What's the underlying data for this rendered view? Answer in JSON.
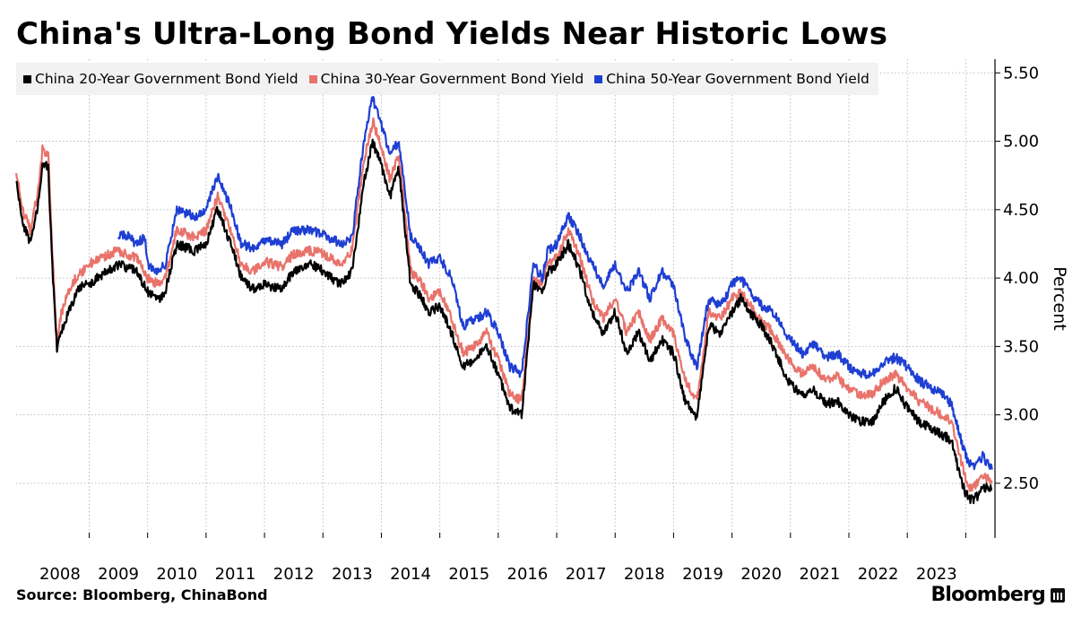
{
  "chart_data": {
    "type": "line",
    "title": "China's Ultra-Long Bond Yields Near Historic Lows",
    "ylabel": "Percent",
    "xlabel": "",
    "ylim": [
      2.1,
      5.6
    ],
    "xlim": [
      2007.75,
      2024.5
    ],
    "y_ticks": [
      "2.50",
      "3.00",
      "3.50",
      "4.00",
      "4.50",
      "5.00",
      "5.50"
    ],
    "x_ticks": [
      "2008",
      "2009",
      "2010",
      "2011",
      "2012",
      "2013",
      "2014",
      "2015",
      "2016",
      "2017",
      "2018",
      "2019",
      "2020",
      "2021",
      "2022",
      "2023"
    ],
    "grid": true,
    "legend_position": "top-left",
    "series": [
      {
        "name": "China 20-Year Government Bond Yield",
        "color": "#000000",
        "x": [
          2007.75,
          2007.85,
          2008.0,
          2008.15,
          2008.2,
          2008.3,
          2008.38,
          2008.45,
          2008.5,
          2008.6,
          2008.7,
          2008.8,
          2008.9,
          2009.0,
          2009.2,
          2009.5,
          2009.8,
          2010.0,
          2010.2,
          2010.3,
          2010.5,
          2010.8,
          2011.0,
          2011.2,
          2011.45,
          2011.6,
          2011.8,
          2012.0,
          2012.3,
          2012.5,
          2012.8,
          2013.0,
          2013.3,
          2013.5,
          2013.7,
          2013.85,
          2014.0,
          2014.15,
          2014.3,
          2014.5,
          2014.7,
          2014.8,
          2015.0,
          2015.2,
          2015.4,
          2015.6,
          2015.8,
          2016.0,
          2016.2,
          2016.4,
          2016.6,
          2016.75,
          2016.85,
          2017.0,
          2017.2,
          2017.4,
          2017.6,
          2017.8,
          2018.0,
          2018.2,
          2018.4,
          2018.6,
          2018.8,
          2019.0,
          2019.2,
          2019.4,
          2019.6,
          2019.8,
          2020.0,
          2020.15,
          2020.3,
          2020.4,
          2020.5,
          2020.7,
          2020.9,
          2021.0,
          2021.2,
          2021.4,
          2021.6,
          2021.8,
          2022.0,
          2022.2,
          2022.4,
          2022.6,
          2022.8,
          2023.0,
          2023.2,
          2023.4,
          2023.6,
          2023.75,
          2023.9,
          2024.0,
          2024.1,
          2024.2,
          2024.3,
          2024.4,
          2024.45
        ],
        "values": [
          4.72,
          4.42,
          4.25,
          4.6,
          4.85,
          4.8,
          4.0,
          3.45,
          3.6,
          3.7,
          3.8,
          3.9,
          3.95,
          3.95,
          4.02,
          4.1,
          4.05,
          3.9,
          3.85,
          3.9,
          4.25,
          4.2,
          4.25,
          4.5,
          4.22,
          4.0,
          3.92,
          3.95,
          3.92,
          4.05,
          4.1,
          4.05,
          3.95,
          4.05,
          4.7,
          5.0,
          4.82,
          4.6,
          4.8,
          3.95,
          3.85,
          3.75,
          3.8,
          3.6,
          3.35,
          3.4,
          3.5,
          3.3,
          3.05,
          3.0,
          3.95,
          3.9,
          4.05,
          4.1,
          4.25,
          4.05,
          3.75,
          3.6,
          3.75,
          3.45,
          3.6,
          3.4,
          3.55,
          3.45,
          3.1,
          2.98,
          3.65,
          3.6,
          3.75,
          3.85,
          3.75,
          3.7,
          3.65,
          3.5,
          3.3,
          3.22,
          3.15,
          3.18,
          3.08,
          3.1,
          3.0,
          2.95,
          2.95,
          3.1,
          3.2,
          3.05,
          2.95,
          2.9,
          2.85,
          2.82,
          2.55,
          2.42,
          2.38,
          2.4,
          2.48,
          2.45,
          2.45
        ]
      },
      {
        "name": "China 30-Year Government Bond Yield",
        "color": "#e8736b",
        "x": [
          2007.75,
          2007.85,
          2008.0,
          2008.15,
          2008.2,
          2008.3,
          2008.38,
          2008.45,
          2008.5,
          2008.6,
          2008.7,
          2008.8,
          2008.9,
          2009.0,
          2009.2,
          2009.5,
          2009.8,
          2010.0,
          2010.2,
          2010.3,
          2010.5,
          2010.8,
          2011.0,
          2011.2,
          2011.45,
          2011.6,
          2011.8,
          2012.0,
          2012.3,
          2012.5,
          2012.8,
          2013.0,
          2013.3,
          2013.5,
          2013.7,
          2013.85,
          2014.0,
          2014.15,
          2014.3,
          2014.5,
          2014.7,
          2014.8,
          2015.0,
          2015.2,
          2015.4,
          2015.6,
          2015.8,
          2016.0,
          2016.2,
          2016.4,
          2016.6,
          2016.75,
          2016.85,
          2017.0,
          2017.2,
          2017.4,
          2017.6,
          2017.8,
          2018.0,
          2018.2,
          2018.4,
          2018.6,
          2018.8,
          2019.0,
          2019.2,
          2019.4,
          2019.6,
          2019.8,
          2020.0,
          2020.15,
          2020.3,
          2020.4,
          2020.5,
          2020.7,
          2020.9,
          2021.0,
          2021.2,
          2021.4,
          2021.6,
          2021.8,
          2022.0,
          2022.2,
          2022.4,
          2022.6,
          2022.8,
          2023.0,
          2023.2,
          2023.4,
          2023.6,
          2023.75,
          2023.9,
          2024.0,
          2024.1,
          2024.2,
          2024.3,
          2024.4,
          2024.45
        ],
        "values": [
          4.8,
          4.5,
          4.35,
          4.7,
          4.95,
          4.9,
          4.1,
          3.5,
          3.7,
          3.85,
          3.95,
          4.02,
          4.05,
          4.1,
          4.15,
          4.2,
          4.15,
          4.0,
          3.95,
          4.0,
          4.35,
          4.3,
          4.35,
          4.6,
          4.3,
          4.1,
          4.05,
          4.12,
          4.08,
          4.18,
          4.2,
          4.18,
          4.1,
          4.2,
          4.85,
          5.15,
          4.95,
          4.72,
          4.9,
          4.05,
          3.95,
          3.85,
          3.9,
          3.7,
          3.45,
          3.5,
          3.6,
          3.4,
          3.15,
          3.1,
          4.0,
          3.95,
          4.1,
          4.15,
          4.35,
          4.15,
          3.85,
          3.7,
          3.85,
          3.6,
          3.75,
          3.55,
          3.7,
          3.6,
          3.25,
          3.1,
          3.75,
          3.7,
          3.85,
          3.9,
          3.8,
          3.75,
          3.7,
          3.6,
          3.45,
          3.38,
          3.3,
          3.35,
          3.25,
          3.28,
          3.18,
          3.15,
          3.15,
          3.25,
          3.3,
          3.2,
          3.1,
          3.05,
          3.0,
          2.95,
          2.7,
          2.52,
          2.45,
          2.5,
          2.55,
          2.52,
          2.52
        ]
      },
      {
        "name": "China 50-Year Government Bond Yield",
        "color": "#1f3fd3",
        "x": [
          2009.5,
          2009.6,
          2009.7,
          2009.8,
          2009.95,
          2010.0,
          2010.2,
          2010.3,
          2010.5,
          2010.8,
          2011.0,
          2011.2,
          2011.45,
          2011.6,
          2011.8,
          2012.0,
          2012.3,
          2012.5,
          2012.8,
          2013.0,
          2013.3,
          2013.5,
          2013.7,
          2013.85,
          2014.0,
          2014.15,
          2014.3,
          2014.5,
          2014.7,
          2014.8,
          2015.0,
          2015.2,
          2015.4,
          2015.6,
          2015.8,
          2016.0,
          2016.2,
          2016.4,
          2016.6,
          2016.75,
          2016.85,
          2017.0,
          2017.2,
          2017.4,
          2017.6,
          2017.8,
          2018.0,
          2018.2,
          2018.4,
          2018.6,
          2018.8,
          2019.0,
          2019.2,
          2019.4,
          2019.6,
          2019.8,
          2020.0,
          2020.15,
          2020.3,
          2020.4,
          2020.5,
          2020.7,
          2020.9,
          2021.0,
          2021.2,
          2021.4,
          2021.6,
          2021.8,
          2022.0,
          2022.2,
          2022.4,
          2022.6,
          2022.8,
          2023.0,
          2023.2,
          2023.4,
          2023.6,
          2023.75,
          2023.9,
          2024.0,
          2024.1,
          2024.2,
          2024.3,
          2024.4,
          2024.45
        ],
        "values": [
          4.3,
          4.32,
          4.3,
          4.25,
          4.3,
          4.1,
          4.05,
          4.1,
          4.5,
          4.45,
          4.5,
          4.75,
          4.48,
          4.25,
          4.22,
          4.28,
          4.25,
          4.35,
          4.35,
          4.32,
          4.25,
          4.3,
          5.0,
          5.32,
          5.12,
          4.9,
          5.0,
          4.3,
          4.2,
          4.1,
          4.15,
          4.0,
          3.65,
          3.7,
          3.75,
          3.6,
          3.35,
          3.3,
          4.1,
          4.0,
          4.2,
          4.25,
          4.45,
          4.3,
          4.1,
          3.95,
          4.1,
          3.9,
          4.05,
          3.85,
          4.05,
          3.95,
          3.55,
          3.35,
          3.85,
          3.8,
          3.95,
          4.0,
          3.9,
          3.85,
          3.8,
          3.75,
          3.6,
          3.55,
          3.45,
          3.52,
          3.42,
          3.45,
          3.35,
          3.3,
          3.3,
          3.38,
          3.42,
          3.35,
          3.25,
          3.2,
          3.15,
          3.08,
          2.85,
          2.7,
          2.62,
          2.65,
          2.7,
          2.62,
          2.6
        ]
      }
    ]
  },
  "legend": [
    {
      "label": "China 20-Year Government Bond Yield",
      "color": "#000000"
    },
    {
      "label": "China 30-Year Government Bond Yield",
      "color": "#e8736b"
    },
    {
      "label": "China 50-Year Government Bond Yield",
      "color": "#1f3fd3"
    }
  ],
  "footer": {
    "source": "Source: Bloomberg, ChinaBond",
    "brand": "Bloomberg",
    "brand_icon": "bar-chart-icon"
  }
}
